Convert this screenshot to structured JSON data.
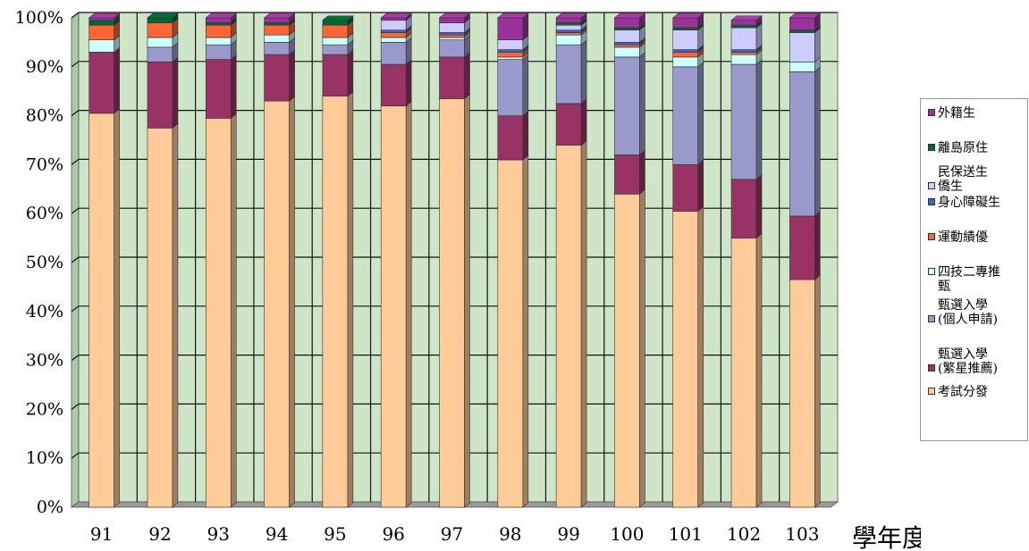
{
  "chart_data": {
    "type": "bar",
    "stacked": true,
    "xlabel": "學年度",
    "ylabel": "",
    "ylim": [
      0,
      100
    ],
    "yticks": [
      "0%",
      "10%",
      "20%",
      "30%",
      "40%",
      "50%",
      "60%",
      "70%",
      "80%",
      "90%",
      "100%"
    ],
    "categories": [
      "91",
      "92",
      "93",
      "94",
      "95",
      "96",
      "97",
      "98",
      "99",
      "100",
      "101",
      "102",
      "103"
    ],
    "grid": true,
    "legend_position": "right",
    "series": [
      {
        "name": "考試分發",
        "color": "#FFCC99",
        "values": [
          80.5,
          77.5,
          79.5,
          83,
          84,
          82,
          83.5,
          71,
          74,
          64,
          60.5,
          55,
          46.5
        ]
      },
      {
        "name": "甄選入學\n(繁星推薦)",
        "color": "#993366",
        "values": [
          12.5,
          13.5,
          12,
          9.5,
          8.5,
          8.5,
          8.5,
          9,
          8.5,
          8,
          9.5,
          12,
          13
        ]
      },
      {
        "name": "甄選入學\n(個人申請)",
        "color": "#9999CC",
        "values": [
          0,
          3,
          3,
          2.5,
          2,
          4.5,
          3.5,
          11.5,
          12,
          20,
          20,
          23.5,
          29.5
        ]
      },
      {
        "name": "四技二專推\n甄",
        "color": "#CCFFFF",
        "values": [
          2.5,
          2,
          1.5,
          1.5,
          1.5,
          1,
          0.5,
          0.5,
          2,
          2,
          2,
          2,
          2
        ]
      },
      {
        "name": "運動績優",
        "color": "#FF6633",
        "values": [
          3,
          3,
          2.5,
          2,
          2.5,
          1,
          0.5,
          1,
          0.5,
          0.5,
          1,
          0.5,
          0
        ]
      },
      {
        "name": "身心障礙生",
        "color": "#3366CC",
        "values": [
          0,
          0,
          0,
          0,
          0,
          0.5,
          0.5,
          0.5,
          0.5,
          0.5,
          0.5,
          0.5,
          0
        ]
      },
      {
        "name": "民保送生\n僑生",
        "color": "#CCCCFF",
        "values": [
          0,
          0,
          0,
          0,
          0,
          2,
          2,
          2,
          1,
          2.5,
          4,
          4.5,
          6
        ]
      },
      {
        "name": "離島原住",
        "color": "#006633",
        "values": [
          1,
          1,
          0.5,
          0.5,
          1,
          0,
          0,
          0,
          0.5,
          0.5,
          0.5,
          0.5,
          0.5
        ]
      },
      {
        "name": "外籍生",
        "color": "#993399",
        "values": [
          0.5,
          0,
          1,
          1,
          0,
          0.5,
          1,
          4.5,
          1,
          2,
          2,
          1,
          2.5
        ]
      }
    ]
  }
}
